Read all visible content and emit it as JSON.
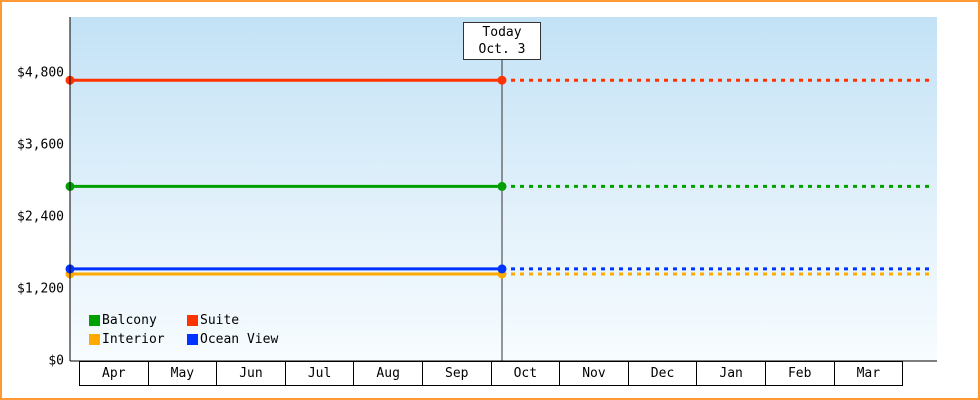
{
  "chart": {
    "today": {
      "line1": "Today",
      "line2": "Oct. 3"
    },
    "legend": [
      {
        "label": "Balcony",
        "color": "#00a000"
      },
      {
        "label": "Suite",
        "color": "#ff3300"
      },
      {
        "label": "Interior",
        "color": "#ffaa00"
      },
      {
        "label": "Ocean View",
        "color": "#0033ff"
      }
    ],
    "colors": {
      "frame_border": "#ff9933",
      "plot_gradient_top": "#c3e2f6",
      "plot_gradient_bottom": "#f7fcff",
      "axis": "#000000",
      "today_line": "#333333"
    }
  },
  "chart_data": {
    "type": "line",
    "title": "",
    "xlabel": "",
    "ylabel": "",
    "x": [
      "Apr",
      "May",
      "Jun",
      "Jul",
      "Aug",
      "Sep",
      "Oct",
      "Nov",
      "Dec",
      "Jan",
      "Feb",
      "Mar"
    ],
    "y_ticks": [
      {
        "label": "$0",
        "value": 0
      },
      {
        "label": "$1,200",
        "value": 1200
      },
      {
        "label": "$2,400",
        "value": 2400
      },
      {
        "label": "$3,600",
        "value": 3600
      },
      {
        "label": "$4,800",
        "value": 4800
      }
    ],
    "ylim": [
      0,
      4800
    ],
    "grid": false,
    "legend_position": "bottom-left-inside",
    "today": {
      "label": "Today",
      "date": "Oct. 3",
      "between_months": [
        "Sep",
        "Oct"
      ]
    },
    "line_style": {
      "before_today": "solid",
      "after_today": "dashed",
      "markers_at": [
        "start",
        "today"
      ]
    },
    "series": [
      {
        "name": "Suite",
        "color": "#ff3300",
        "value": 4680,
        "values": [
          4680,
          4680,
          4680,
          4680,
          4680,
          4680,
          4680,
          4680,
          4680,
          4680,
          4680,
          4680
        ]
      },
      {
        "name": "Balcony",
        "color": "#00a000",
        "value": 2910,
        "values": [
          2910,
          2910,
          2910,
          2910,
          2910,
          2910,
          2910,
          2910,
          2910,
          2910,
          2910,
          2910
        ]
      },
      {
        "name": "Interior",
        "color": "#ffaa00",
        "value": 1450,
        "values": [
          1450,
          1450,
          1450,
          1450,
          1450,
          1450,
          1450,
          1450,
          1450,
          1450,
          1450,
          1450
        ]
      },
      {
        "name": "Ocean View",
        "color": "#0033ff",
        "value": 1535,
        "values": [
          1535,
          1535,
          1535,
          1535,
          1535,
          1535,
          1535,
          1535,
          1535,
          1535,
          1535,
          1535
        ]
      }
    ]
  }
}
